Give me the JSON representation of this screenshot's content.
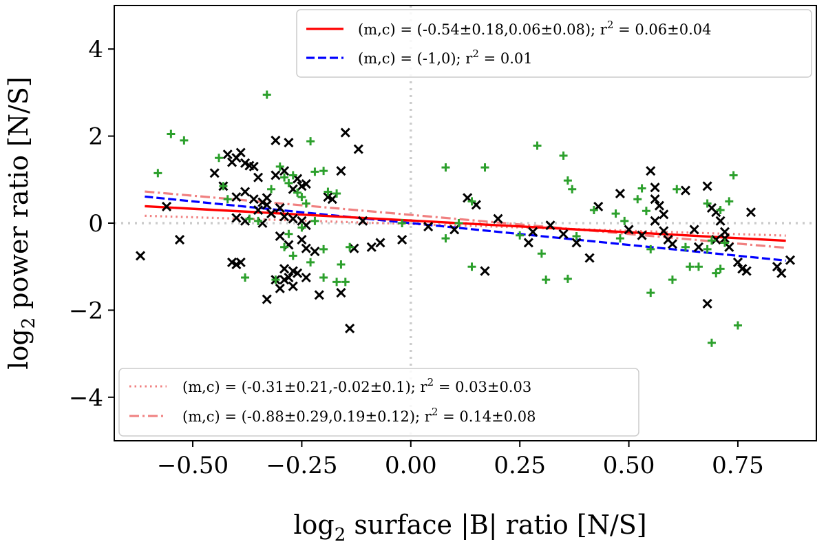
{
  "chart_data": {
    "type": "scatter",
    "xlabel_prefix": "log",
    "xlabel_sub": "2",
    "xlabel_rest": " surface |B| ratio [N/S]",
    "ylabel_prefix": "log",
    "ylabel_sub": "2",
    "ylabel_rest": " power ratio [N/S]",
    "xlim": [
      -0.68,
      0.93
    ],
    "ylim": [
      -5.0,
      5.0
    ],
    "xticks": [
      -0.5,
      -0.25,
      0.0,
      0.25,
      0.5,
      0.75
    ],
    "xtick_labels": [
      "−0.50",
      "−0.25",
      "0.00",
      "0.25",
      "0.50",
      "0.75"
    ],
    "yticks": [
      -4,
      -2,
      0,
      2,
      4
    ],
    "ytick_labels": [
      "−4",
      "−2",
      "0",
      "2",
      "4"
    ],
    "reference_lines": {
      "x": 0,
      "y": 0,
      "color": "#cccccc"
    },
    "series_points": [
      {
        "name": "black-x",
        "marker": "x",
        "color": "#000000",
        "points": [
          [
            -0.62,
            -0.75
          ],
          [
            -0.56,
            0.38
          ],
          [
            -0.53,
            -0.38
          ],
          [
            -0.45,
            1.15
          ],
          [
            -0.43,
            0.85
          ],
          [
            -0.42,
            1.58
          ],
          [
            -0.4,
            1.5
          ],
          [
            -0.41,
            1.4
          ],
          [
            -0.39,
            1.62
          ],
          [
            -0.38,
            1.38
          ],
          [
            -0.37,
            1.32
          ],
          [
            -0.36,
            1.3
          ],
          [
            -0.35,
            1.05
          ],
          [
            -0.38,
            0.72
          ],
          [
            -0.4,
            0.6
          ],
          [
            -0.36,
            0.55
          ],
          [
            -0.34,
            0.48
          ],
          [
            -0.33,
            0.42
          ],
          [
            -0.4,
            0.12
          ],
          [
            -0.38,
            0.05
          ],
          [
            -0.34,
            0.0
          ],
          [
            -0.32,
            0.22
          ],
          [
            -0.3,
            0.35
          ],
          [
            -0.29,
            0.15
          ],
          [
            -0.27,
            0.1
          ],
          [
            -0.25,
            0.05
          ],
          [
            -0.24,
            -0.05
          ],
          [
            -0.3,
            -0.3
          ],
          [
            -0.28,
            -0.5
          ],
          [
            -0.25,
            -0.38
          ],
          [
            -0.24,
            -0.58
          ],
          [
            -0.22,
            -0.65
          ],
          [
            -0.41,
            -0.9
          ],
          [
            -0.4,
            -0.95
          ],
          [
            -0.39,
            -0.9
          ],
          [
            -0.29,
            -1.05
          ],
          [
            -0.27,
            -1.1
          ],
          [
            -0.26,
            -1.15
          ],
          [
            -0.28,
            -1.25
          ],
          [
            -0.29,
            -1.3
          ],
          [
            -0.31,
            -1.3
          ],
          [
            -0.3,
            -1.5
          ],
          [
            -0.27,
            -1.45
          ],
          [
            -0.24,
            -1.25
          ],
          [
            -0.21,
            -1.65
          ],
          [
            -0.16,
            -1.6
          ],
          [
            -0.33,
            -1.75
          ],
          [
            -0.14,
            -2.42
          ],
          [
            -0.26,
            1.02
          ],
          [
            -0.24,
            0.9
          ],
          [
            -0.27,
            0.78
          ],
          [
            -0.25,
            0.85
          ],
          [
            -0.18,
            0.55
          ],
          [
            -0.19,
            0.6
          ],
          [
            -0.16,
            1.2
          ],
          [
            -0.15,
            2.08
          ],
          [
            -0.12,
            1.7
          ],
          [
            -0.31,
            1.9
          ],
          [
            -0.28,
            1.85
          ],
          [
            -0.29,
            1.2
          ],
          [
            -0.31,
            1.1
          ],
          [
            -0.35,
            0.3
          ],
          [
            -0.33,
            0.58
          ],
          [
            -0.09,
            -0.55
          ],
          [
            -0.07,
            -0.45
          ],
          [
            -0.13,
            -0.58
          ],
          [
            -0.11,
            0.05
          ],
          [
            -0.02,
            -0.38
          ],
          [
            0.04,
            -0.08
          ],
          [
            0.1,
            -0.15
          ],
          [
            0.13,
            0.58
          ],
          [
            0.15,
            0.42
          ],
          [
            0.17,
            -1.1
          ],
          [
            0.2,
            0.1
          ],
          [
            0.27,
            -0.45
          ],
          [
            0.28,
            -0.2
          ],
          [
            0.32,
            -0.05
          ],
          [
            0.35,
            -0.25
          ],
          [
            0.38,
            -0.45
          ],
          [
            0.41,
            -0.8
          ],
          [
            0.43,
            0.38
          ],
          [
            0.48,
            0.68
          ],
          [
            0.5,
            -0.15
          ],
          [
            0.53,
            -0.28
          ],
          [
            0.55,
            1.2
          ],
          [
            0.56,
            0.82
          ],
          [
            0.56,
            0.55
          ],
          [
            0.57,
            0.4
          ],
          [
            0.58,
            0.2
          ],
          [
            0.56,
            0.05
          ],
          [
            0.58,
            -0.18
          ],
          [
            0.59,
            -0.38
          ],
          [
            0.6,
            -0.48
          ],
          [
            0.63,
            0.75
          ],
          [
            0.65,
            -0.15
          ],
          [
            0.66,
            -0.55
          ],
          [
            0.68,
            0.85
          ],
          [
            0.69,
            0.35
          ],
          [
            0.7,
            0.25
          ],
          [
            0.71,
            0.05
          ],
          [
            0.72,
            -0.2
          ],
          [
            0.72,
            -0.35
          ],
          [
            0.73,
            -0.55
          ],
          [
            0.68,
            -1.85
          ],
          [
            0.75,
            -0.9
          ],
          [
            0.76,
            -1.05
          ],
          [
            0.77,
            -1.1
          ],
          [
            0.78,
            0.25
          ],
          [
            0.84,
            -1.0
          ],
          [
            0.85,
            -1.15
          ],
          [
            0.87,
            -0.85
          ],
          [
            0.7,
            -0.38
          ]
        ]
      },
      {
        "name": "green-plus",
        "marker": "+",
        "color": "#2ca02c",
        "points": [
          [
            -0.58,
            1.15
          ],
          [
            -0.55,
            2.05
          ],
          [
            -0.52,
            1.9
          ],
          [
            -0.44,
            1.5
          ],
          [
            -0.43,
            0.85
          ],
          [
            -0.42,
            0.55
          ],
          [
            -0.37,
            0.1
          ],
          [
            -0.35,
            0.05
          ],
          [
            -0.33,
            2.95
          ],
          [
            -0.32,
            0.78
          ],
          [
            -0.3,
            1.3
          ],
          [
            -0.29,
            1.05
          ],
          [
            -0.28,
            0.92
          ],
          [
            -0.27,
            1.1
          ],
          [
            -0.26,
            0.7
          ],
          [
            -0.25,
            0.6
          ],
          [
            -0.24,
            0.45
          ],
          [
            -0.23,
            1.88
          ],
          [
            -0.22,
            1.18
          ],
          [
            -0.2,
            1.2
          ],
          [
            -0.19,
            0.72
          ],
          [
            -0.17,
            0.68
          ],
          [
            -0.22,
            0.05
          ],
          [
            -0.25,
            -0.1
          ],
          [
            -0.28,
            -0.25
          ],
          [
            -0.29,
            -0.55
          ],
          [
            -0.27,
            -0.75
          ],
          [
            -0.23,
            -0.9
          ],
          [
            -0.2,
            -0.6
          ],
          [
            -0.2,
            -1.25
          ],
          [
            -0.17,
            -1.35
          ],
          [
            -0.38,
            -1.25
          ],
          [
            -0.31,
            -1.3
          ],
          [
            -0.15,
            -1.35
          ],
          [
            -0.16,
            -0.95
          ],
          [
            -0.14,
            -0.55
          ],
          [
            0.08,
            1.28
          ],
          [
            0.08,
            -0.35
          ],
          [
            0.11,
            0.0
          ],
          [
            0.14,
            0.5
          ],
          [
            0.14,
            -1.0
          ],
          [
            0.17,
            1.28
          ],
          [
            0.25,
            -0.28
          ],
          [
            0.29,
            1.78
          ],
          [
            0.3,
            -0.7
          ],
          [
            0.31,
            -1.3
          ],
          [
            0.35,
            1.55
          ],
          [
            0.36,
            0.98
          ],
          [
            0.37,
            0.78
          ],
          [
            0.36,
            -1.28
          ],
          [
            0.38,
            -0.3
          ],
          [
            0.42,
            0.3
          ],
          [
            0.47,
            0.22
          ],
          [
            0.49,
            0.05
          ],
          [
            0.48,
            -0.35
          ],
          [
            0.52,
            0.55
          ],
          [
            0.53,
            0.8
          ],
          [
            0.54,
            0.28
          ],
          [
            0.55,
            -0.6
          ],
          [
            0.55,
            -1.6
          ],
          [
            0.6,
            -1.3
          ],
          [
            0.61,
            0.78
          ],
          [
            0.63,
            -0.55
          ],
          [
            0.64,
            -1.0
          ],
          [
            0.66,
            -1.0
          ],
          [
            0.68,
            0.45
          ],
          [
            0.69,
            -0.4
          ],
          [
            0.7,
            -1.15
          ],
          [
            0.71,
            -1.05
          ],
          [
            0.71,
            0.3
          ],
          [
            0.73,
            0.5
          ],
          [
            0.74,
            1.1
          ],
          [
            0.69,
            -2.75
          ],
          [
            0.75,
            -2.35
          ],
          [
            0.68,
            -0.6
          ],
          [
            0.72,
            -0.45
          ],
          [
            -0.02,
            0.0
          ]
        ]
      }
    ],
    "fit_lines": [
      {
        "name": "solid-red",
        "m": -0.54,
        "c": 0.06,
        "x_range": [
          -0.61,
          0.86
        ],
        "color": "#ff0000",
        "style": "solid",
        "legend": "(m,c) = (-0.54±0.18,0.06±0.08); r",
        "legend_sup": "2",
        "legend_tail": " = 0.06±0.04"
      },
      {
        "name": "dashed-blue",
        "m": -1.0,
        "c": 0.0,
        "x_range": [
          -0.61,
          0.86
        ],
        "color": "#0000ff",
        "style": "dashed",
        "legend": "(m,c) = (-1,0); r",
        "legend_sup": "2",
        "legend_tail": " = 0.01"
      },
      {
        "name": "dotted-salmon",
        "m": -0.31,
        "c": -0.02,
        "x_range": [
          -0.61,
          0.86
        ],
        "color": "#f08080",
        "style": "dotted",
        "legend": "(m,c) = (-0.31±0.21,-0.02±0.1); r",
        "legend_sup": "2",
        "legend_tail": " = 0.03±0.03"
      },
      {
        "name": "dashdot-salmon",
        "m": -0.88,
        "c": 0.19,
        "x_range": [
          -0.61,
          0.86
        ],
        "color": "#f08080",
        "style": "dashdot",
        "legend": "(m,c) = (-0.88±0.29,0.19±0.12); r",
        "legend_sup": "2",
        "legend_tail": " = 0.14±0.08"
      }
    ],
    "legends": [
      {
        "position": "upper-right",
        "entries": [
          0,
          1
        ]
      },
      {
        "position": "lower-left",
        "entries": [
          2,
          3
        ]
      }
    ]
  }
}
